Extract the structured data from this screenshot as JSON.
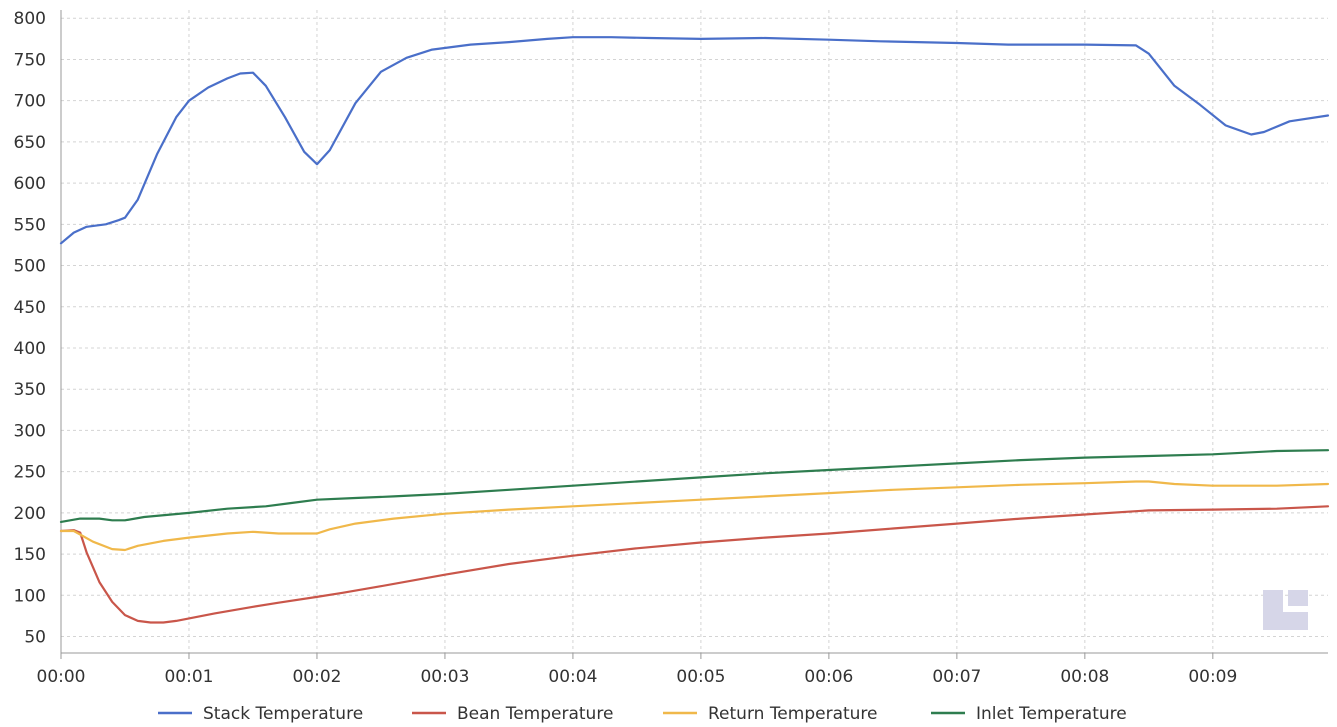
{
  "chart_data": {
    "type": "line",
    "title": "",
    "xlabel": "",
    "ylabel": "",
    "xlim": [
      0,
      9.9
    ],
    "ylim": [
      30,
      810
    ],
    "x_ticks": [
      {
        "value": 0,
        "label": "00:00"
      },
      {
        "value": 1,
        "label": "00:01"
      },
      {
        "value": 2,
        "label": "00:02"
      },
      {
        "value": 3,
        "label": "00:03"
      },
      {
        "value": 4,
        "label": "00:04"
      },
      {
        "value": 5,
        "label": "00:05"
      },
      {
        "value": 6,
        "label": "00:06"
      },
      {
        "value": 7,
        "label": "00:07"
      },
      {
        "value": 8,
        "label": "00:08"
      },
      {
        "value": 9,
        "label": "00:09"
      }
    ],
    "y_ticks": [
      50,
      100,
      150,
      200,
      250,
      300,
      350,
      400,
      450,
      500,
      550,
      600,
      650,
      700,
      750,
      800
    ],
    "grid": true,
    "legend_position": "bottom",
    "series": [
      {
        "name": "Stack Temperature",
        "color": "#4a6fc9",
        "points": [
          [
            0,
            527
          ],
          [
            0.1,
            540
          ],
          [
            0.2,
            547
          ],
          [
            0.35,
            550
          ],
          [
            0.45,
            555
          ],
          [
            0.5,
            558
          ],
          [
            0.6,
            580
          ],
          [
            0.75,
            635
          ],
          [
            0.9,
            680
          ],
          [
            1.0,
            700
          ],
          [
            1.15,
            716
          ],
          [
            1.3,
            727
          ],
          [
            1.4,
            733
          ],
          [
            1.5,
            734
          ],
          [
            1.6,
            718
          ],
          [
            1.75,
            680
          ],
          [
            1.9,
            638
          ],
          [
            2.0,
            623
          ],
          [
            2.1,
            640
          ],
          [
            2.3,
            697
          ],
          [
            2.5,
            735
          ],
          [
            2.7,
            752
          ],
          [
            2.9,
            762
          ],
          [
            3.2,
            768
          ],
          [
            3.5,
            771
          ],
          [
            3.8,
            775
          ],
          [
            4.0,
            777
          ],
          [
            4.3,
            777
          ],
          [
            4.6,
            776
          ],
          [
            5.0,
            775
          ],
          [
            5.5,
            776
          ],
          [
            6.0,
            774
          ],
          [
            6.4,
            772
          ],
          [
            7.0,
            770
          ],
          [
            7.4,
            768
          ],
          [
            8.0,
            768
          ],
          [
            8.4,
            767
          ],
          [
            8.5,
            757
          ],
          [
            8.7,
            718
          ],
          [
            8.9,
            695
          ],
          [
            9.1,
            670
          ],
          [
            9.3,
            659
          ],
          [
            9.4,
            662
          ],
          [
            9.6,
            675
          ],
          [
            9.9,
            682
          ]
        ]
      },
      {
        "name": "Bean Temperature",
        "color": "#c9564a",
        "points": [
          [
            0,
            178
          ],
          [
            0.1,
            179
          ],
          [
            0.15,
            176
          ],
          [
            0.2,
            152
          ],
          [
            0.3,
            116
          ],
          [
            0.4,
            92
          ],
          [
            0.5,
            76
          ],
          [
            0.6,
            69
          ],
          [
            0.7,
            67
          ],
          [
            0.8,
            67
          ],
          [
            0.9,
            69
          ],
          [
            1.0,
            72
          ],
          [
            1.2,
            78
          ],
          [
            1.5,
            86
          ],
          [
            1.7,
            91
          ],
          [
            2.0,
            98
          ],
          [
            2.2,
            103
          ],
          [
            2.5,
            111
          ],
          [
            3.0,
            125
          ],
          [
            3.5,
            138
          ],
          [
            4.0,
            148
          ],
          [
            4.5,
            157
          ],
          [
            5.0,
            164
          ],
          [
            5.5,
            170
          ],
          [
            6.0,
            175
          ],
          [
            6.5,
            181
          ],
          [
            7.0,
            187
          ],
          [
            7.5,
            193
          ],
          [
            8.0,
            198
          ],
          [
            8.4,
            202
          ],
          [
            8.5,
            203
          ],
          [
            9.0,
            204
          ],
          [
            9.5,
            205
          ],
          [
            9.9,
            208
          ]
        ]
      },
      {
        "name": "Return Temperature",
        "color": "#f0b84a",
        "points": [
          [
            0,
            178
          ],
          [
            0.1,
            178
          ],
          [
            0.25,
            165
          ],
          [
            0.4,
            156
          ],
          [
            0.5,
            155
          ],
          [
            0.6,
            160
          ],
          [
            0.8,
            166
          ],
          [
            1.0,
            170
          ],
          [
            1.3,
            175
          ],
          [
            1.5,
            177
          ],
          [
            1.7,
            175
          ],
          [
            2.0,
            175
          ],
          [
            2.1,
            180
          ],
          [
            2.3,
            187
          ],
          [
            2.6,
            193
          ],
          [
            3.0,
            199
          ],
          [
            3.5,
            204
          ],
          [
            4.0,
            208
          ],
          [
            4.5,
            212
          ],
          [
            5.0,
            216
          ],
          [
            5.5,
            220
          ],
          [
            6.0,
            224
          ],
          [
            6.5,
            228
          ],
          [
            7.0,
            231
          ],
          [
            7.5,
            234
          ],
          [
            8.0,
            236
          ],
          [
            8.4,
            238
          ],
          [
            8.5,
            238
          ],
          [
            8.7,
            235
          ],
          [
            9.0,
            233
          ],
          [
            9.5,
            233
          ],
          [
            9.9,
            235
          ]
        ]
      },
      {
        "name": "Inlet Temperature",
        "color": "#2e7d4f",
        "points": [
          [
            0,
            189
          ],
          [
            0.15,
            193
          ],
          [
            0.3,
            193
          ],
          [
            0.4,
            191
          ],
          [
            0.5,
            191
          ],
          [
            0.65,
            195
          ],
          [
            1.0,
            200
          ],
          [
            1.3,
            205
          ],
          [
            1.6,
            208
          ],
          [
            1.8,
            212
          ],
          [
            2.0,
            216
          ],
          [
            2.3,
            218
          ],
          [
            2.6,
            220
          ],
          [
            3.0,
            223
          ],
          [
            3.5,
            228
          ],
          [
            4.0,
            233
          ],
          [
            4.5,
            238
          ],
          [
            5.0,
            243
          ],
          [
            5.5,
            248
          ],
          [
            6.0,
            252
          ],
          [
            6.5,
            256
          ],
          [
            7.0,
            260
          ],
          [
            7.5,
            264
          ],
          [
            8.0,
            267
          ],
          [
            8.5,
            269
          ],
          [
            9.0,
            271
          ],
          [
            9.5,
            275
          ],
          [
            9.9,
            276
          ]
        ]
      }
    ]
  }
}
